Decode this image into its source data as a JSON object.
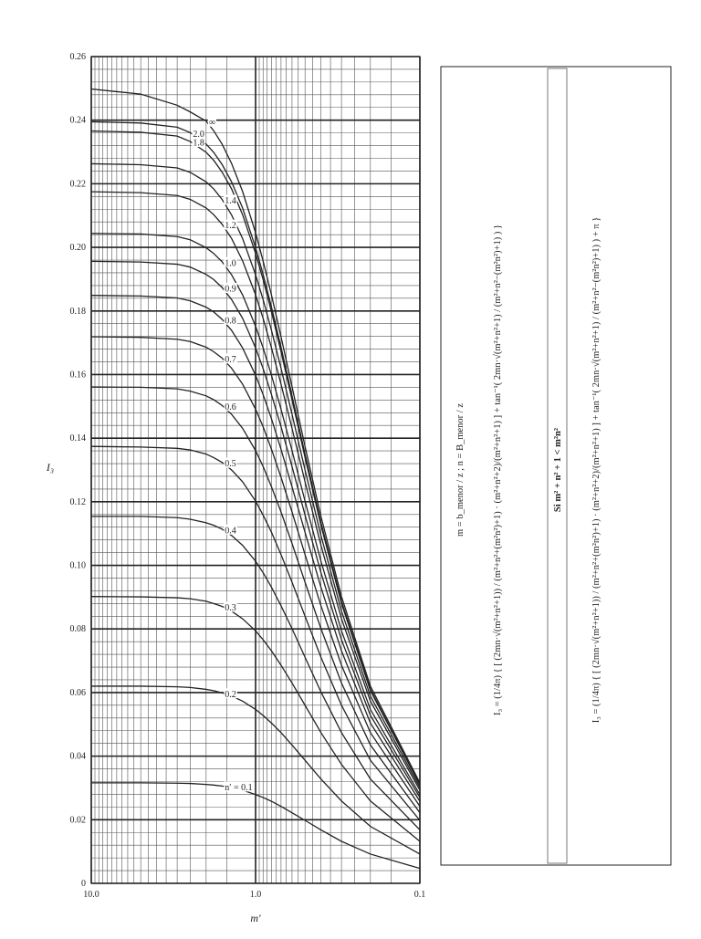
{
  "chart_data": {
    "type": "line",
    "x_label": "m′",
    "y_label": "I₃",
    "xlim": [
      10,
      0.1
    ],
    "ylim": [
      0,
      0.26
    ],
    "log_x": true,
    "grid": true,
    "minor_grid": true,
    "xticks": [
      {
        "value": 10,
        "label": "10.0"
      },
      {
        "value": 1,
        "label": "1.0"
      },
      0.1
    ],
    "yticks": [
      0,
      0.02,
      0.04,
      0.06,
      0.08,
      {
        "value": 0.1,
        "label": "0.10"
      },
      0.12,
      0.14,
      0.16,
      0.18,
      {
        "value": 0.2,
        "label": "0.20"
      },
      0.22,
      0.24,
      0.26
    ],
    "x": [
      10,
      5,
      3,
      2.5,
      2,
      1.8,
      1.6,
      1.4,
      1.2,
      1.0,
      0.9,
      0.8,
      0.7,
      0.6,
      0.5,
      0.4,
      0.3,
      0.2,
      0.1
    ],
    "series": [
      {
        "name": "∞",
        "color": "#222222",
        "values": [
          0.2498,
          0.2482,
          0.2447,
          0.2426,
          0.2397,
          0.2367,
          0.2325,
          0.2264,
          0.2176,
          0.2046,
          0.1957,
          0.185,
          0.1719,
          0.1562,
          0.1374,
          0.1154,
          0.0902,
          0.062,
          0.0316
        ]
      },
      {
        "name": "2.0",
        "color": "#222222",
        "values": [
          0.2395,
          0.2391,
          0.2378,
          0.2361,
          0.2325,
          0.2299,
          0.2261,
          0.2206,
          0.2124,
          0.1999,
          0.1915,
          0.1812,
          0.1686,
          0.1533,
          0.135,
          0.1134,
          0.0887,
          0.061,
          0.0311
        ]
      },
      {
        "name": "1.8",
        "color": "#222222",
        "values": [
          0.2366,
          0.2362,
          0.235,
          0.2333,
          0.2299,
          0.2274,
          0.2237,
          0.2184,
          0.2103,
          0.1981,
          0.1899,
          0.1797,
          0.1672,
          0.1521,
          0.1339,
          0.1126,
          0.088,
          0.0606,
          0.0309
        ]
      },
      {
        "name": "1.4",
        "color": "#222222",
        "values": [
          0.2263,
          0.226,
          0.225,
          0.2236,
          0.2206,
          0.2184,
          0.2151,
          0.2102,
          0.2028,
          0.1914,
          0.1836,
          0.1739,
          0.162,
          0.1475,
          0.13,
          0.1094,
          0.0856,
          0.0589,
          0.0301
        ]
      },
      {
        "name": "1.2",
        "color": "#222222",
        "values": [
          0.2175,
          0.2172,
          0.2163,
          0.2151,
          0.2124,
          0.2103,
          0.2073,
          0.2028,
          0.1958,
          0.1851,
          0.1777,
          0.1684,
          0.157,
          0.1431,
          0.1263,
          0.1063,
          0.0832,
          0.0573,
          0.0293
        ]
      },
      {
        "name": "1.0",
        "color": "#222222",
        "values": [
          0.2044,
          0.2042,
          0.2034,
          0.2024,
          0.1999,
          0.1981,
          0.1955,
          0.1914,
          0.1851,
          0.1752,
          0.1684,
          0.1598,
          0.1491,
          0.1361,
          0.1202,
          0.1013,
          0.0794,
          0.0547,
          0.0279
        ]
      },
      {
        "name": "0.9",
        "color": "#222222",
        "values": [
          0.1956,
          0.1954,
          0.1947,
          0.1938,
          0.1915,
          0.1899,
          0.1874,
          0.1836,
          0.1777,
          0.1684,
          0.1619,
          0.1537,
          0.1436,
          0.1311,
          0.1158,
          0.0977,
          0.0766,
          0.0528,
          0.027
        ]
      },
      {
        "name": "0.8",
        "color": "#222222",
        "values": [
          0.1849,
          0.1847,
          0.1841,
          0.1832,
          0.1812,
          0.1797,
          0.1774,
          0.1739,
          0.1684,
          0.1598,
          0.1537,
          0.1461,
          0.1365,
          0.1247,
          0.1104,
          0.0931,
          0.0731,
          0.0504,
          0.0258
        ]
      },
      {
        "name": "0.7",
        "color": "#222222",
        "values": [
          0.1719,
          0.1717,
          0.1711,
          0.1704,
          0.1686,
          0.1672,
          0.1652,
          0.162,
          0.157,
          0.1491,
          0.1436,
          0.1365,
          0.1277,
          0.1168,
          0.1034,
          0.0873,
          0.0686,
          0.0474,
          0.0242
        ]
      },
      {
        "name": "0.6",
        "color": "#222222",
        "values": [
          0.1561,
          0.156,
          0.1555,
          0.1548,
          0.1533,
          0.1521,
          0.1503,
          0.1475,
          0.1431,
          0.1361,
          0.1311,
          0.1247,
          0.1168,
          0.1069,
          0.0947,
          0.0801,
          0.063,
          0.0435,
          0.0222
        ]
      },
      {
        "name": "0.5",
        "color": "#222222",
        "values": [
          0.1374,
          0.1372,
          0.1368,
          0.1363,
          0.135,
          0.1339,
          0.1324,
          0.13,
          0.1263,
          0.1202,
          0.1158,
          0.1104,
          0.1034,
          0.0947,
          0.084,
          0.0711,
          0.056,
          0.0387,
          0.0198
        ]
      },
      {
        "name": "0.4",
        "color": "#222222",
        "values": [
          0.1154,
          0.1154,
          0.115,
          0.1145,
          0.1134,
          0.1126,
          0.1114,
          0.1094,
          0.1063,
          0.1013,
          0.0977,
          0.0931,
          0.0873,
          0.0801,
          0.0711,
          0.0602,
          0.0474,
          0.0328,
          0.0168
        ]
      },
      {
        "name": "0.3",
        "color": "#222222",
        "values": [
          0.0902,
          0.0901,
          0.0898,
          0.0895,
          0.0887,
          0.088,
          0.0871,
          0.0856,
          0.0832,
          0.0794,
          0.0766,
          0.0731,
          0.0686,
          0.063,
          0.056,
          0.0474,
          0.0374,
          0.0259,
          0.0132
        ]
      },
      {
        "name": "0.2",
        "color": "#222222",
        "values": [
          0.062,
          0.062,
          0.0618,
          0.0616,
          0.061,
          0.0606,
          0.0599,
          0.0589,
          0.0573,
          0.0547,
          0.0528,
          0.0504,
          0.0474,
          0.0435,
          0.0387,
          0.0328,
          0.0259,
          0.0179,
          0.0092
        ]
      },
      {
        "name": "n′ = 0.1",
        "color": "#222222",
        "values": [
          0.0316,
          0.0316,
          0.0315,
          0.0314,
          0.0311,
          0.0309,
          0.0306,
          0.0301,
          0.0293,
          0.0279,
          0.027,
          0.0258,
          0.0242,
          0.0222,
          0.0198,
          0.0168,
          0.0132,
          0.0092,
          0.0047
        ]
      }
    ]
  },
  "formula_box": {
    "definition": "m = b_menor / z ; n = B_menor / z",
    "formula_1": "I₃ = (1/4π) { [ (2mn·√(m²+n²+1)) / (m²+n²+(m²n²)+1) · (m²+n²+2)/(m²+n²+1) ] + tan⁻¹( 2mn·√(m²+n²+1) / (m²+n²−(m²n²)+1) ) }",
    "condition": "Si m² + n² + 1 < m²n²",
    "formula_2": "I₃ = (1/4π) { [ (2mn·√(m²+n²+1)) / (m²+n²+(m²n²)+1) · (m²+n²+2)/(m²+n²+1) ] + tan⁻¹( 2mn·√(m²+n²+1) / (m²+n²−(m²n²)+1) ) + π }"
  }
}
